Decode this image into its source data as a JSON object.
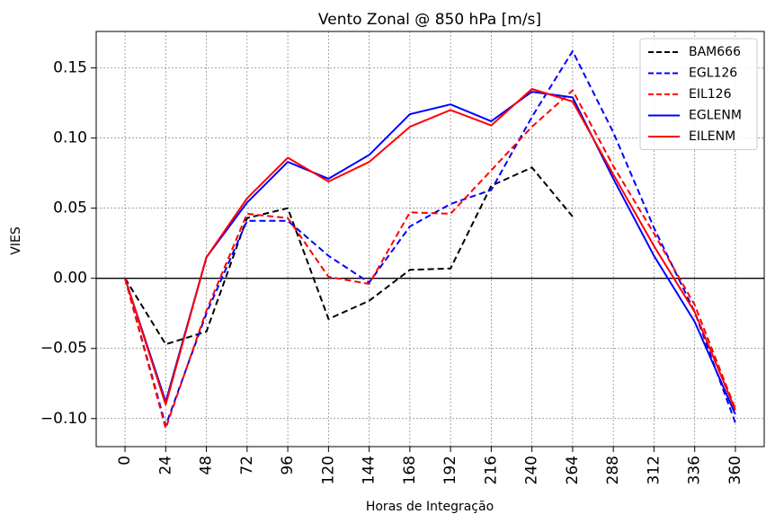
{
  "chart_data": {
    "type": "line",
    "title": "Vento Zonal @ 850 hPa [m/s]",
    "xlabel": "Horas de Integração",
    "ylabel": "VIES",
    "x": [
      0,
      24,
      48,
      72,
      96,
      120,
      144,
      168,
      192,
      216,
      240,
      264,
      288,
      312,
      336,
      360
    ],
    "x_tick_labels": [
      "0",
      "24",
      "48",
      "72",
      "96",
      "120",
      "144",
      "168",
      "192",
      "216",
      "240",
      "264",
      "288",
      "312",
      "336",
      "360"
    ],
    "xlim": [
      -17,
      377
    ],
    "ylim": [
      -0.12,
      0.176
    ],
    "y_ticks": [
      -0.1,
      -0.05,
      0.0,
      0.05,
      0.1,
      0.15
    ],
    "y_tick_labels": [
      "−0.10",
      "−0.05",
      "0.00",
      "0.05",
      "0.10",
      "0.15"
    ],
    "grid": true,
    "zero_line": true,
    "legend_position": "top-right",
    "series": [
      {
        "name": "BAM666",
        "color": "#000000",
        "dash": "dashed",
        "x": [
          0,
          24,
          48,
          72,
          96,
          120,
          144,
          168,
          192,
          216,
          240,
          264
        ],
        "values": [
          0.0,
          -0.047,
          -0.038,
          0.043,
          0.05,
          -0.029,
          -0.016,
          0.006,
          0.007,
          0.066,
          0.079,
          0.044
        ]
      },
      {
        "name": "EGL126",
        "color": "#0000ff",
        "dash": "dashed",
        "x": [
          0,
          24,
          48,
          72,
          96,
          120,
          144,
          168,
          192,
          216,
          240,
          264,
          288,
          312,
          336,
          360
        ],
        "values": [
          0.0,
          -0.105,
          -0.025,
          0.041,
          0.041,
          0.016,
          -0.003,
          0.037,
          0.053,
          0.063,
          0.115,
          0.162,
          0.104,
          0.036,
          -0.024,
          -0.103
        ]
      },
      {
        "name": "EIL126",
        "color": "#ff0000",
        "dash": "dashed",
        "x": [
          0,
          24,
          48,
          72,
          96,
          120,
          144,
          168,
          192,
          216,
          240,
          264,
          288,
          312,
          336,
          360
        ],
        "values": [
          0.0,
          -0.107,
          -0.023,
          0.046,
          0.043,
          0.001,
          -0.004,
          0.047,
          0.046,
          0.077,
          0.108,
          0.134,
          0.08,
          0.032,
          -0.019,
          -0.093
        ]
      },
      {
        "name": "EGLENM",
        "color": "#0000ff",
        "dash": "solid",
        "x": [
          0,
          24,
          48,
          72,
          96,
          120,
          144,
          168,
          192,
          216,
          240,
          264,
          288,
          312,
          336,
          360
        ],
        "values": [
          0.0,
          -0.088,
          0.015,
          0.054,
          0.083,
          0.071,
          0.088,
          0.117,
          0.124,
          0.112,
          0.133,
          0.129,
          0.071,
          0.016,
          -0.031,
          -0.097
        ]
      },
      {
        "name": "EILENM",
        "color": "#ff0000",
        "dash": "solid",
        "x": [
          0,
          24,
          48,
          72,
          96,
          120,
          144,
          168,
          192,
          216,
          240,
          264,
          288,
          312,
          336,
          360
        ],
        "values": [
          0.0,
          -0.09,
          0.015,
          0.057,
          0.086,
          0.069,
          0.083,
          0.108,
          0.12,
          0.109,
          0.135,
          0.126,
          0.074,
          0.023,
          -0.024,
          -0.094
        ]
      }
    ]
  }
}
